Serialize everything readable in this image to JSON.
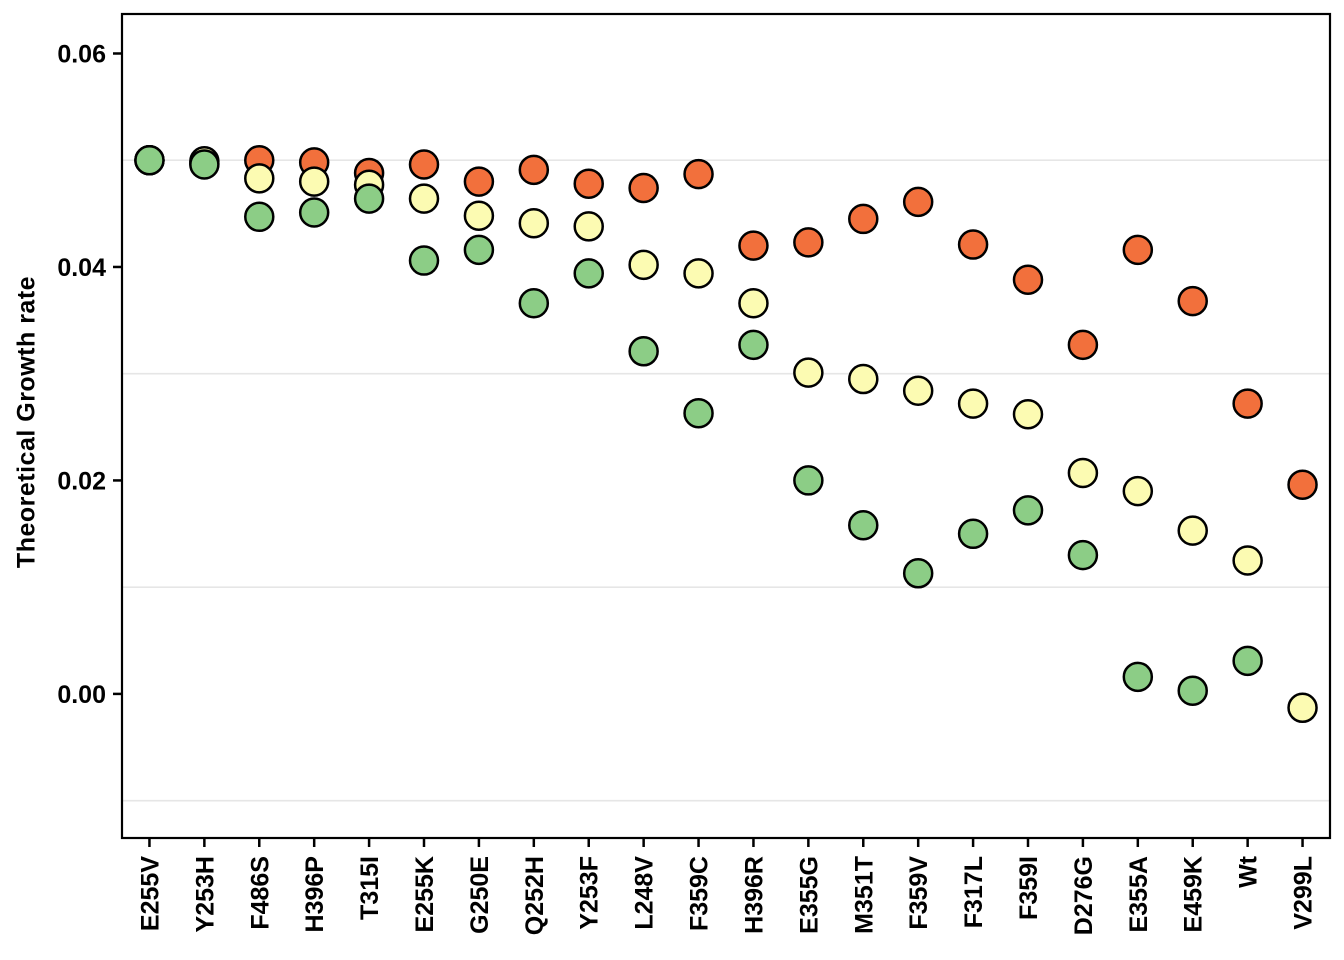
{
  "page": {
    "background": "#FFFFFF"
  },
  "chart_data": {
    "type": "scatter",
    "title": "",
    "xlabel": "",
    "ylabel": "Theoretical Growth rate",
    "legend": "none",
    "categories": [
      "E255V",
      "Y253H",
      "F486S",
      "H396P",
      "T315I",
      "E255K",
      "G250E",
      "Q252H",
      "Y253F",
      "L248V",
      "F359C",
      "H396R",
      "E355G",
      "M351T",
      "F359V",
      "F317L",
      "F359I",
      "D276G",
      "E355A",
      "E459K",
      "Wt",
      "V299L"
    ],
    "series": [
      {
        "name": "orange",
        "color": "#F2703C",
        "values": [
          0.05,
          0.0497,
          0.05,
          0.0498,
          0.0488,
          0.0496,
          0.048,
          0.0491,
          0.0478,
          0.0474,
          0.0487,
          0.042,
          0.0423,
          0.0445,
          0.0461,
          0.0421,
          0.0388,
          0.0327,
          0.0416,
          0.0368,
          0.0272,
          0.0196
        ]
      },
      {
        "name": "yellow",
        "color": "#FCFBB2",
        "values": [
          0.05,
          0.0499,
          0.0483,
          0.048,
          0.0477,
          0.0464,
          0.0448,
          0.0441,
          0.0438,
          0.0402,
          0.0394,
          0.0366,
          0.0301,
          0.0295,
          0.0284,
          0.0272,
          0.0262,
          0.0207,
          0.019,
          0.0153,
          0.0125,
          -0.0013
        ]
      },
      {
        "name": "green",
        "color": "#8CCD86",
        "values": [
          0.05,
          0.0496,
          0.0447,
          0.0451,
          0.0464,
          0.0406,
          0.0416,
          0.0366,
          0.0394,
          0.0321,
          0.0263,
          0.0327,
          0.02,
          0.0158,
          0.0113,
          0.015,
          0.0172,
          0.013,
          0.0016,
          0.0003,
          0.0031,
          null
        ]
      }
    ],
    "marker": {
      "stroke_color": "#000000"
    },
    "y_axis": {
      "tick_values": [
        0.06,
        0.04,
        0.02,
        0.0
      ],
      "tick_labels": [
        "0.06",
        "0.04",
        "0.02",
        "0.00"
      ],
      "minor_gridlines": [
        0.05,
        0.03,
        0.01,
        -0.01
      ],
      "ylim": [
        -0.0135,
        0.0637
      ]
    },
    "grid": {
      "color": "#E6E6E6",
      "major": false,
      "minor": true
    }
  }
}
